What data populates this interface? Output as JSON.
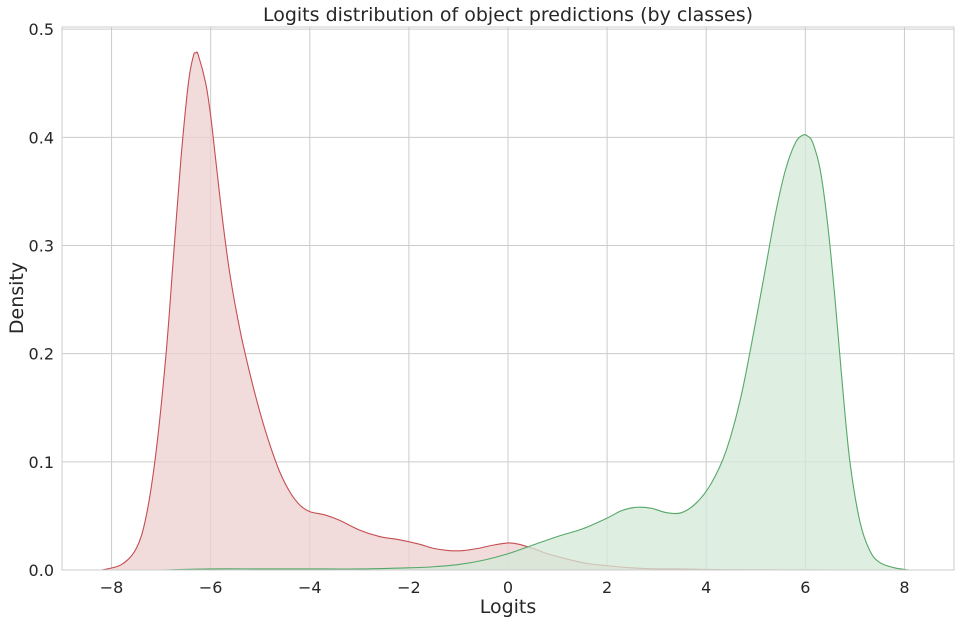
{
  "chart_data": {
    "type": "area",
    "title": "Logits distribution of object predictions (by classes)",
    "xlabel": "Logits",
    "ylabel": "Density",
    "xlim": [
      -9.0,
      9.0
    ],
    "ylim": [
      0.0,
      0.502
    ],
    "xticks": [
      -8,
      -6,
      -4,
      -2,
      0,
      2,
      4,
      6,
      8
    ],
    "xtick_labels": [
      "−8",
      "−6",
      "−4",
      "−2",
      "0",
      "2",
      "4",
      "6",
      "8"
    ],
    "yticks": [
      0.0,
      0.1,
      0.2,
      0.3,
      0.4,
      0.5
    ],
    "ytick_labels": [
      "0.0",
      "0.1",
      "0.2",
      "0.3",
      "0.4",
      "0.5"
    ],
    "grid": true,
    "legend": "none",
    "series": [
      {
        "color": "#c44e52",
        "fill_color": "#eecfcf",
        "x": [
          -8.2,
          -7.8,
          -7.5,
          -7.3,
          -7.1,
          -6.9,
          -6.75,
          -6.6,
          -6.45,
          -6.35,
          -6.3,
          -6.25,
          -6.1,
          -6.0,
          -5.9,
          -5.75,
          -5.6,
          -5.4,
          -5.2,
          -5.0,
          -4.8,
          -4.6,
          -4.4,
          -4.2,
          -4.0,
          -3.7,
          -3.4,
          -3.0,
          -2.6,
          -2.2,
          -1.8,
          -1.5,
          -1.2,
          -0.9,
          -0.6,
          -0.3,
          0.0,
          0.2,
          0.5,
          0.8,
          1.2,
          1.6,
          2.0,
          2.5,
          3.0,
          3.5,
          4.0,
          4.5,
          5.0,
          5.5,
          6.0,
          6.5,
          7.0
        ],
        "y": [
          0.0,
          0.005,
          0.02,
          0.05,
          0.11,
          0.2,
          0.29,
          0.38,
          0.45,
          0.475,
          0.478,
          0.476,
          0.45,
          0.42,
          0.38,
          0.32,
          0.27,
          0.22,
          0.18,
          0.145,
          0.115,
          0.09,
          0.072,
          0.06,
          0.054,
          0.051,
          0.046,
          0.037,
          0.031,
          0.028,
          0.024,
          0.02,
          0.018,
          0.018,
          0.02,
          0.023,
          0.025,
          0.024,
          0.02,
          0.015,
          0.01,
          0.006,
          0.004,
          0.002,
          0.001,
          0.001,
          0.0005,
          0.0003,
          0.0002,
          0.0001,
          0.0001,
          0.0,
          0.0
        ]
      },
      {
        "color": "#55a868",
        "fill_color": "#d3e8d7",
        "x": [
          -7.0,
          -6.0,
          -5.0,
          -4.0,
          -3.0,
          -2.0,
          -1.5,
          -1.0,
          -0.5,
          0.0,
          0.5,
          1.0,
          1.5,
          2.0,
          2.3,
          2.6,
          2.9,
          3.2,
          3.5,
          3.8,
          4.1,
          4.4,
          4.7,
          5.0,
          5.2,
          5.4,
          5.6,
          5.8,
          5.95,
          6.05,
          6.15,
          6.3,
          6.45,
          6.6,
          6.75,
          6.9,
          7.1,
          7.3,
          7.5,
          7.8,
          8.1
        ],
        "y": [
          0.0,
          0.001,
          0.001,
          0.001,
          0.001,
          0.002,
          0.003,
          0.005,
          0.009,
          0.015,
          0.023,
          0.031,
          0.038,
          0.048,
          0.055,
          0.058,
          0.057,
          0.053,
          0.053,
          0.062,
          0.08,
          0.11,
          0.16,
          0.23,
          0.28,
          0.33,
          0.37,
          0.395,
          0.402,
          0.401,
          0.395,
          0.37,
          0.32,
          0.25,
          0.17,
          0.1,
          0.045,
          0.018,
          0.007,
          0.002,
          0.0
        ]
      }
    ]
  }
}
